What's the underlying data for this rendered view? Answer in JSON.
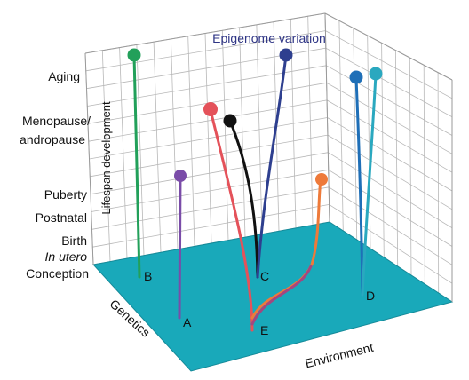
{
  "title": "Epigenome variation",
  "y_axis_title": "Lifespan development",
  "y_stages": [
    "Aging",
    "Menopause/",
    "andropause",
    "Puberty",
    "Postnatal",
    "Birth",
    "In utero",
    "Conception"
  ],
  "x_axis_label": "Genetics",
  "z_axis_label": "Environment",
  "point_labels": [
    "A",
    "B",
    "C",
    "D",
    "E"
  ],
  "colors": {
    "floor": "#19A9BA",
    "grid": "#B8B8B8",
    "title": "#2F3585",
    "B": "#22A05A",
    "A": "#7A4CA8",
    "red": "#E4525A",
    "black": "#111111",
    "navy": "#2E3F8F",
    "orange": "#EE7A3A",
    "purple_red": "#A34780",
    "blue": "#1F6FB7",
    "teal": "#2AA8BF"
  }
}
